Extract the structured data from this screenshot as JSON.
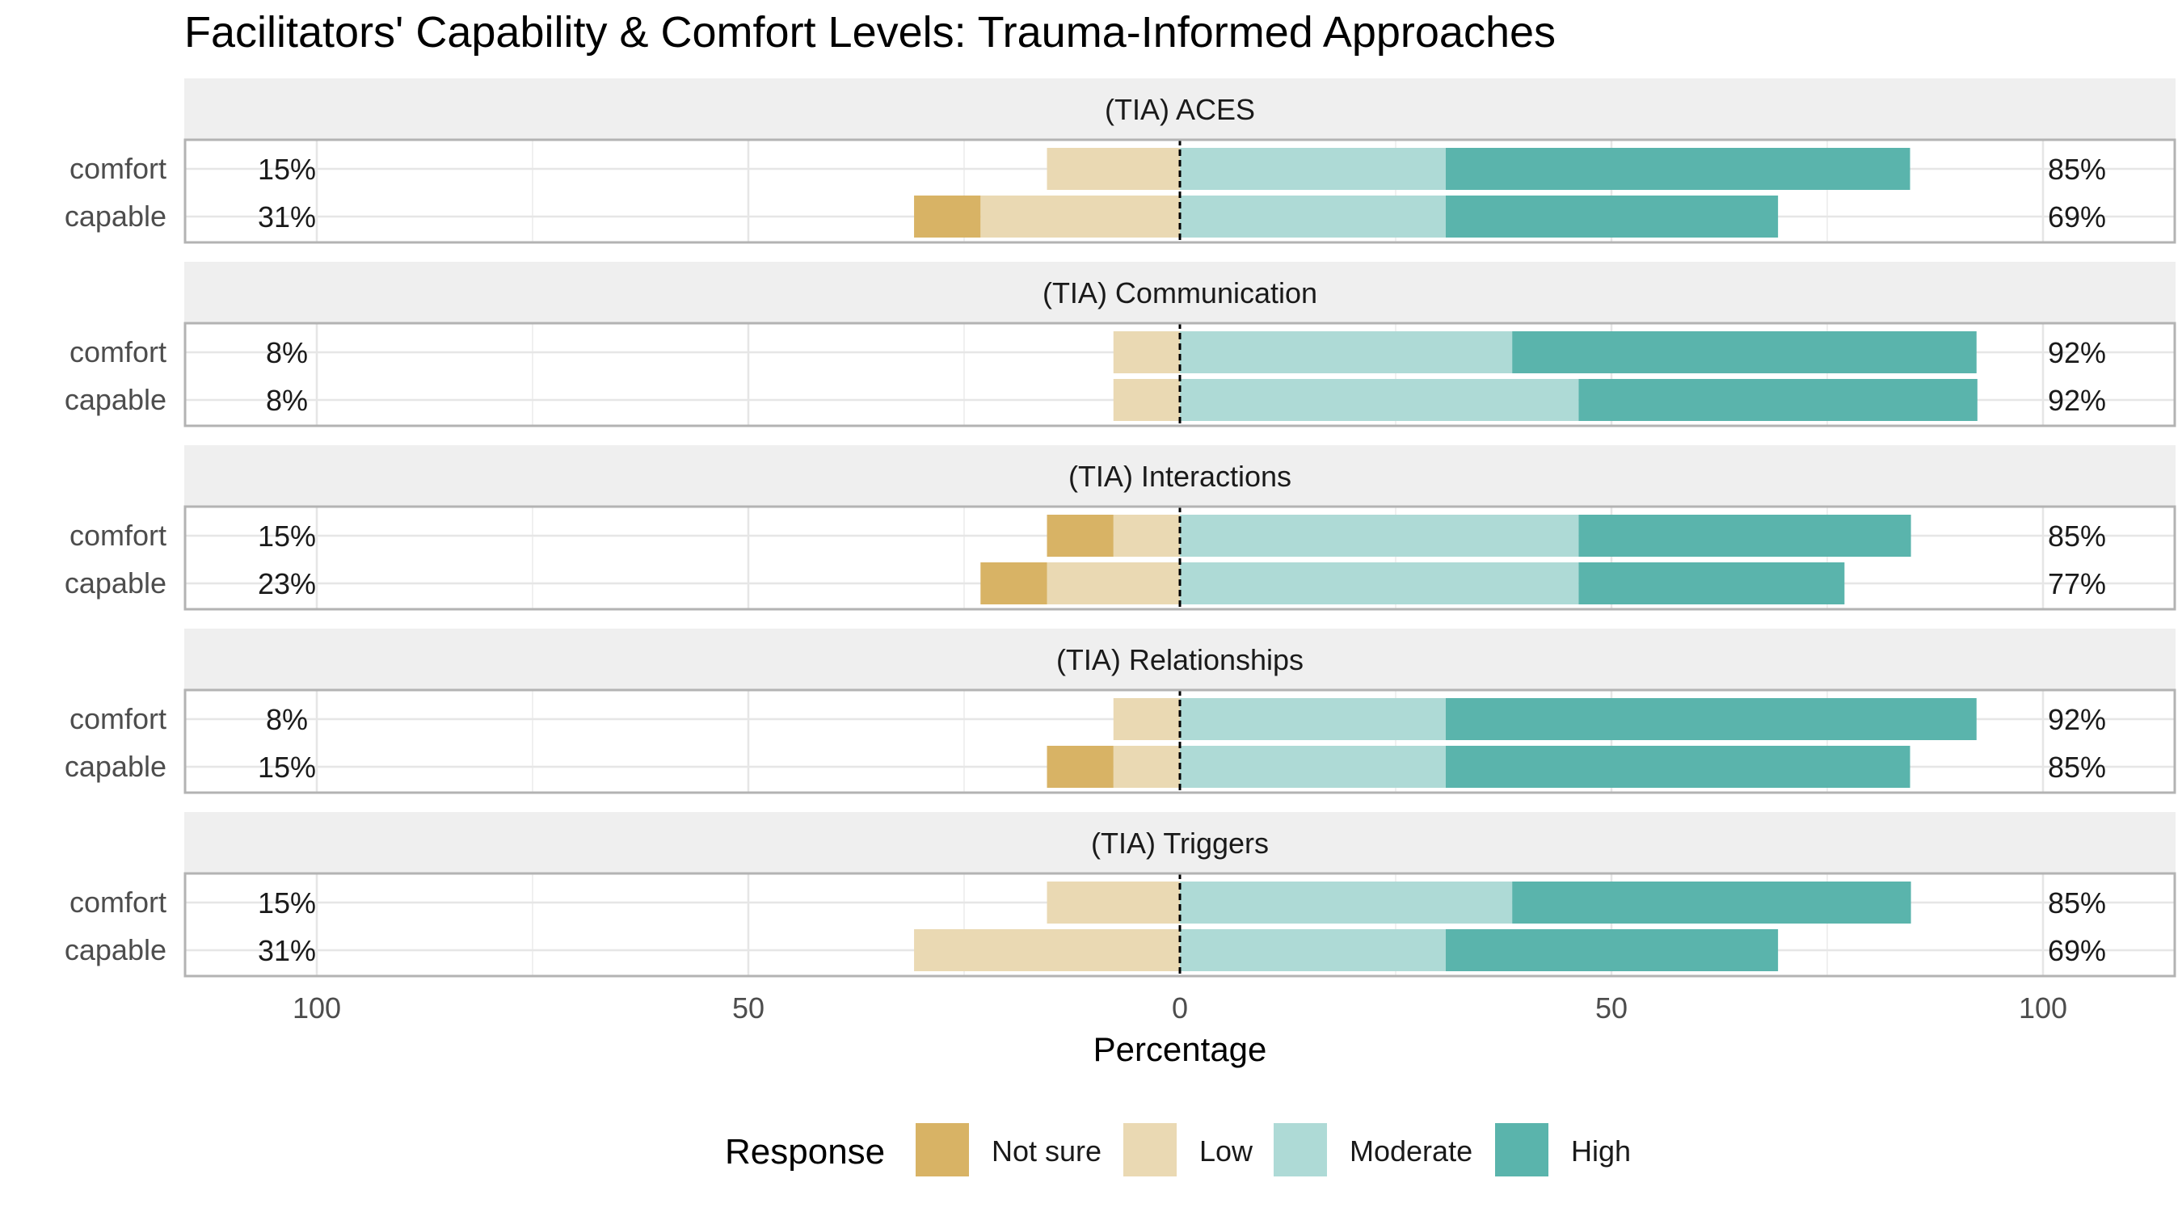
{
  "colors": {
    "Not sure": "#d8b365",
    "Low": "#ead9b3",
    "Moderate": "#aedad6",
    "High": "#5ab4ac",
    "strip_bg": "#efefef",
    "panel_border": "#b3b3b3",
    "grid": "#e6e6e6",
    "text": "#1a1a1a",
    "axis_text": "#4d4d4d"
  },
  "chart_data": {
    "type": "bar",
    "orientation": "horizontal",
    "stacking": "diverging",
    "title": "Facilitators' Capability & Comfort Levels: Trauma-Informed Approaches",
    "xlabel": "Percentage",
    "ylabel": "",
    "xlim": [
      -100,
      100
    ],
    "x_ticks": [
      -100,
      -50,
      0,
      50,
      100
    ],
    "x_tick_labels": [
      "100",
      "50",
      "0",
      "50",
      "100"
    ],
    "legend": {
      "title": "Response",
      "position": "bottom",
      "items": [
        "Not sure",
        "Low",
        "Moderate",
        "High"
      ]
    },
    "negative_levels": [
      "Not sure",
      "Low"
    ],
    "positive_levels": [
      "Moderate",
      "High"
    ],
    "panels": [
      {
        "title": "(TIA) ACES",
        "rows": [
          {
            "label": "comfort",
            "values": {
              "Not sure": 0,
              "Low": 15.4,
              "Moderate": 30.8,
              "High": 53.8
            },
            "left_label": "15%",
            "right_label": "85%"
          },
          {
            "label": "capable",
            "values": {
              "Not sure": 7.7,
              "Low": 23.1,
              "Moderate": 30.8,
              "High": 38.5
            },
            "left_label": "31%",
            "right_label": "69%"
          }
        ]
      },
      {
        "title": "(TIA) Communication",
        "rows": [
          {
            "label": "comfort",
            "values": {
              "Not sure": 0,
              "Low": 7.7,
              "Moderate": 38.5,
              "High": 53.8
            },
            "left_label": "8%",
            "right_label": "92%"
          },
          {
            "label": "capable",
            "values": {
              "Not sure": 0,
              "Low": 7.7,
              "Moderate": 46.2,
              "High": 46.2
            },
            "left_label": "8%",
            "right_label": "92%"
          }
        ]
      },
      {
        "title": "(TIA) Interactions",
        "rows": [
          {
            "label": "comfort",
            "values": {
              "Not sure": 7.7,
              "Low": 7.7,
              "Moderate": 46.2,
              "High": 38.5
            },
            "left_label": "15%",
            "right_label": "85%"
          },
          {
            "label": "capable",
            "values": {
              "Not sure": 7.7,
              "Low": 15.4,
              "Moderate": 46.2,
              "High": 30.8
            },
            "left_label": "23%",
            "right_label": "77%"
          }
        ]
      },
      {
        "title": "(TIA) Relationships",
        "rows": [
          {
            "label": "comfort",
            "values": {
              "Not sure": 0,
              "Low": 7.7,
              "Moderate": 30.8,
              "High": 61.5
            },
            "left_label": "8%",
            "right_label": "92%"
          },
          {
            "label": "capable",
            "values": {
              "Not sure": 7.7,
              "Low": 7.7,
              "Moderate": 30.8,
              "High": 53.8
            },
            "left_label": "15%",
            "right_label": "85%"
          }
        ]
      },
      {
        "title": "(TIA) Triggers",
        "rows": [
          {
            "label": "comfort",
            "values": {
              "Not sure": 0,
              "Low": 15.4,
              "Moderate": 38.5,
              "High": 46.2
            },
            "left_label": "15%",
            "right_label": "85%"
          },
          {
            "label": "capable",
            "values": {
              "Not sure": 0,
              "Low": 30.8,
              "Moderate": 30.8,
              "High": 38.5
            },
            "left_label": "31%",
            "right_label": "69%"
          }
        ]
      }
    ]
  }
}
